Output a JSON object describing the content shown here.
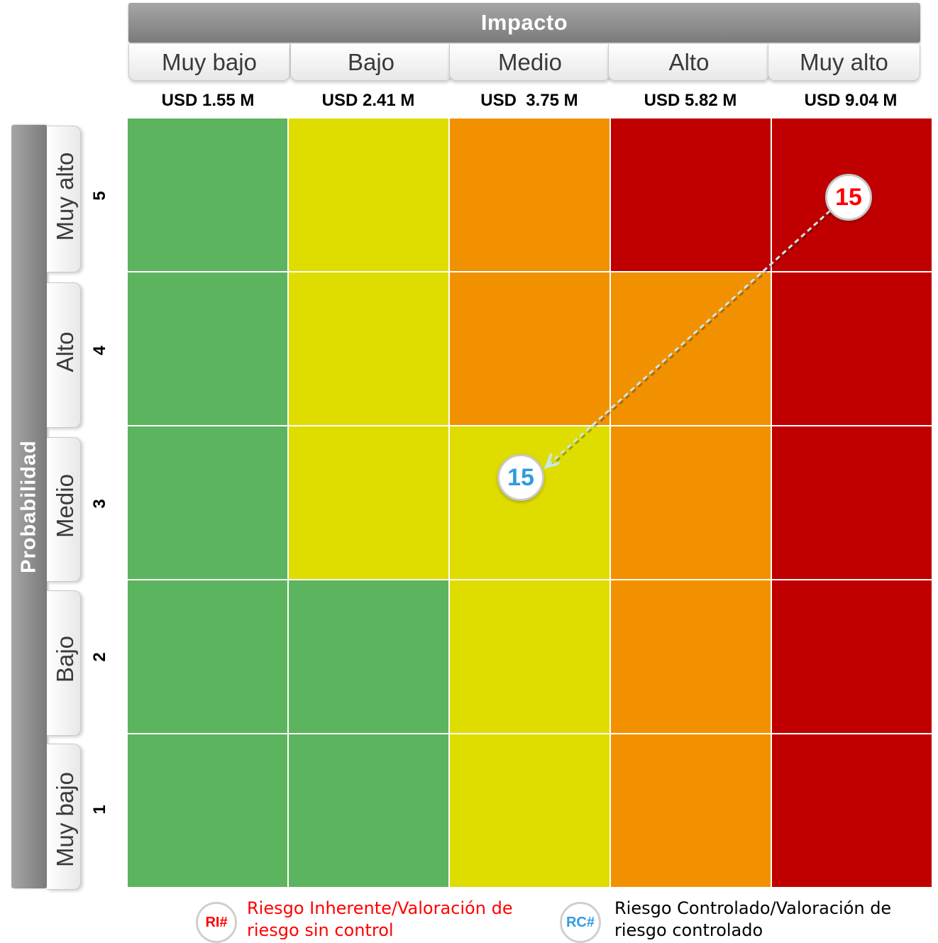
{
  "impact": {
    "title": "Impacto",
    "levels": [
      "Muy bajo",
      "Bajo",
      "Medio",
      "Alto",
      "Muy alto"
    ],
    "values": [
      "USD 1.55 M",
      "USD 2.41 M",
      "USD  3.75 M",
      "USD 5.82 M",
      "USD 9.04 M"
    ]
  },
  "probability": {
    "title": "Probabilidad",
    "levels": [
      {
        "label": "Muy alto",
        "number": "5"
      },
      {
        "label": "Alto",
        "number": "4"
      },
      {
        "label": "Medio",
        "number": "3"
      },
      {
        "label": "Bajo",
        "number": "2"
      },
      {
        "label": "Muy bajo",
        "number": "1"
      }
    ]
  },
  "colors": {
    "green": "#5cb45f",
    "yellow": "#dfdc00",
    "orange": "#f29100",
    "red": "#c00000",
    "inherent": "#ff0000",
    "controlled": "#2f9be0",
    "arrow": "#c8e8ee"
  },
  "matrix": [
    [
      "green",
      "yellow",
      "orange",
      "red",
      "red"
    ],
    [
      "green",
      "yellow",
      "orange",
      "orange",
      "red"
    ],
    [
      "green",
      "yellow",
      "yellow",
      "orange",
      "red"
    ],
    [
      "green",
      "green",
      "yellow",
      "orange",
      "red"
    ],
    [
      "green",
      "green",
      "yellow",
      "orange",
      "red"
    ]
  ],
  "markers": {
    "inherent": {
      "label": "15",
      "impact": "Muy alto",
      "probability": "Muy alto"
    },
    "controlled": {
      "label": "15",
      "impact": "Medio",
      "probability": "Medio"
    }
  },
  "legend": {
    "inherent": {
      "badge": "RI#",
      "text_line1": "Riesgo Inherente/Valoración de",
      "text_line2": "riesgo sin control"
    },
    "controlled": {
      "badge": "RC#",
      "text_line1": "Riesgo Controlado/Valoración de",
      "text_line2": "riesgo controlado"
    }
  }
}
